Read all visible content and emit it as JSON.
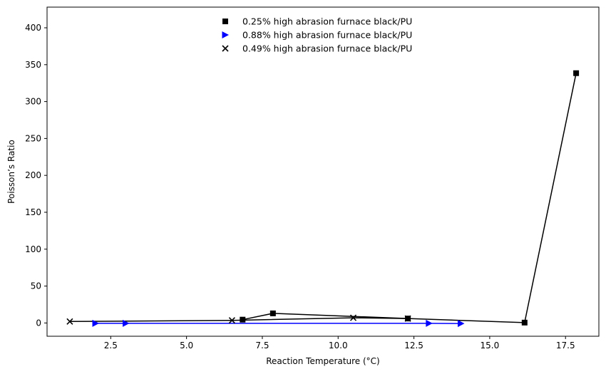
{
  "chart_data": {
    "type": "line",
    "xlabel": "Reaction Temperature (°C)",
    "ylabel": "Poisson’s Ratio",
    "xlim": [
      0.4,
      18.6
    ],
    "ylim": [
      -18,
      428
    ],
    "xticks": [
      2.5,
      5.0,
      7.5,
      10.0,
      12.5,
      15.0,
      17.5
    ],
    "xtick_labels": [
      "2.5",
      "5.0",
      "7.5",
      "10.0",
      "12.5",
      "15.0",
      "17.5"
    ],
    "yticks": [
      0,
      50,
      100,
      150,
      200,
      250,
      300,
      350,
      400
    ],
    "ytick_labels": [
      "0",
      "50",
      "100",
      "150",
      "200",
      "250",
      "300",
      "350",
      "400"
    ],
    "grid": false,
    "legend_position": "top-center",
    "series": [
      {
        "name": "0.25% high abrasion furnace black/PU",
        "marker": "square",
        "color": "#000000",
        "x": [
          6.85,
          7.85,
          12.3,
          16.15,
          17.85
        ],
        "y": [
          4.5,
          13.0,
          6.0,
          0.5,
          338.5
        ]
      },
      {
        "name": "0.88% high abrasion furnace black/PU",
        "marker": "triangle-right",
        "color": "#0000ff",
        "x": [
          2.0,
          3.0,
          13.0,
          14.05
        ],
        "y": [
          -0.5,
          -0.5,
          -0.5,
          -0.8
        ]
      },
      {
        "name": "0.49% high abrasion furnace black/PU",
        "marker": "x",
        "color": "#000000",
        "x": [
          1.15,
          6.5,
          10.5,
          12.3
        ],
        "y": [
          2.0,
          3.5,
          7.0,
          6.0
        ]
      }
    ]
  }
}
